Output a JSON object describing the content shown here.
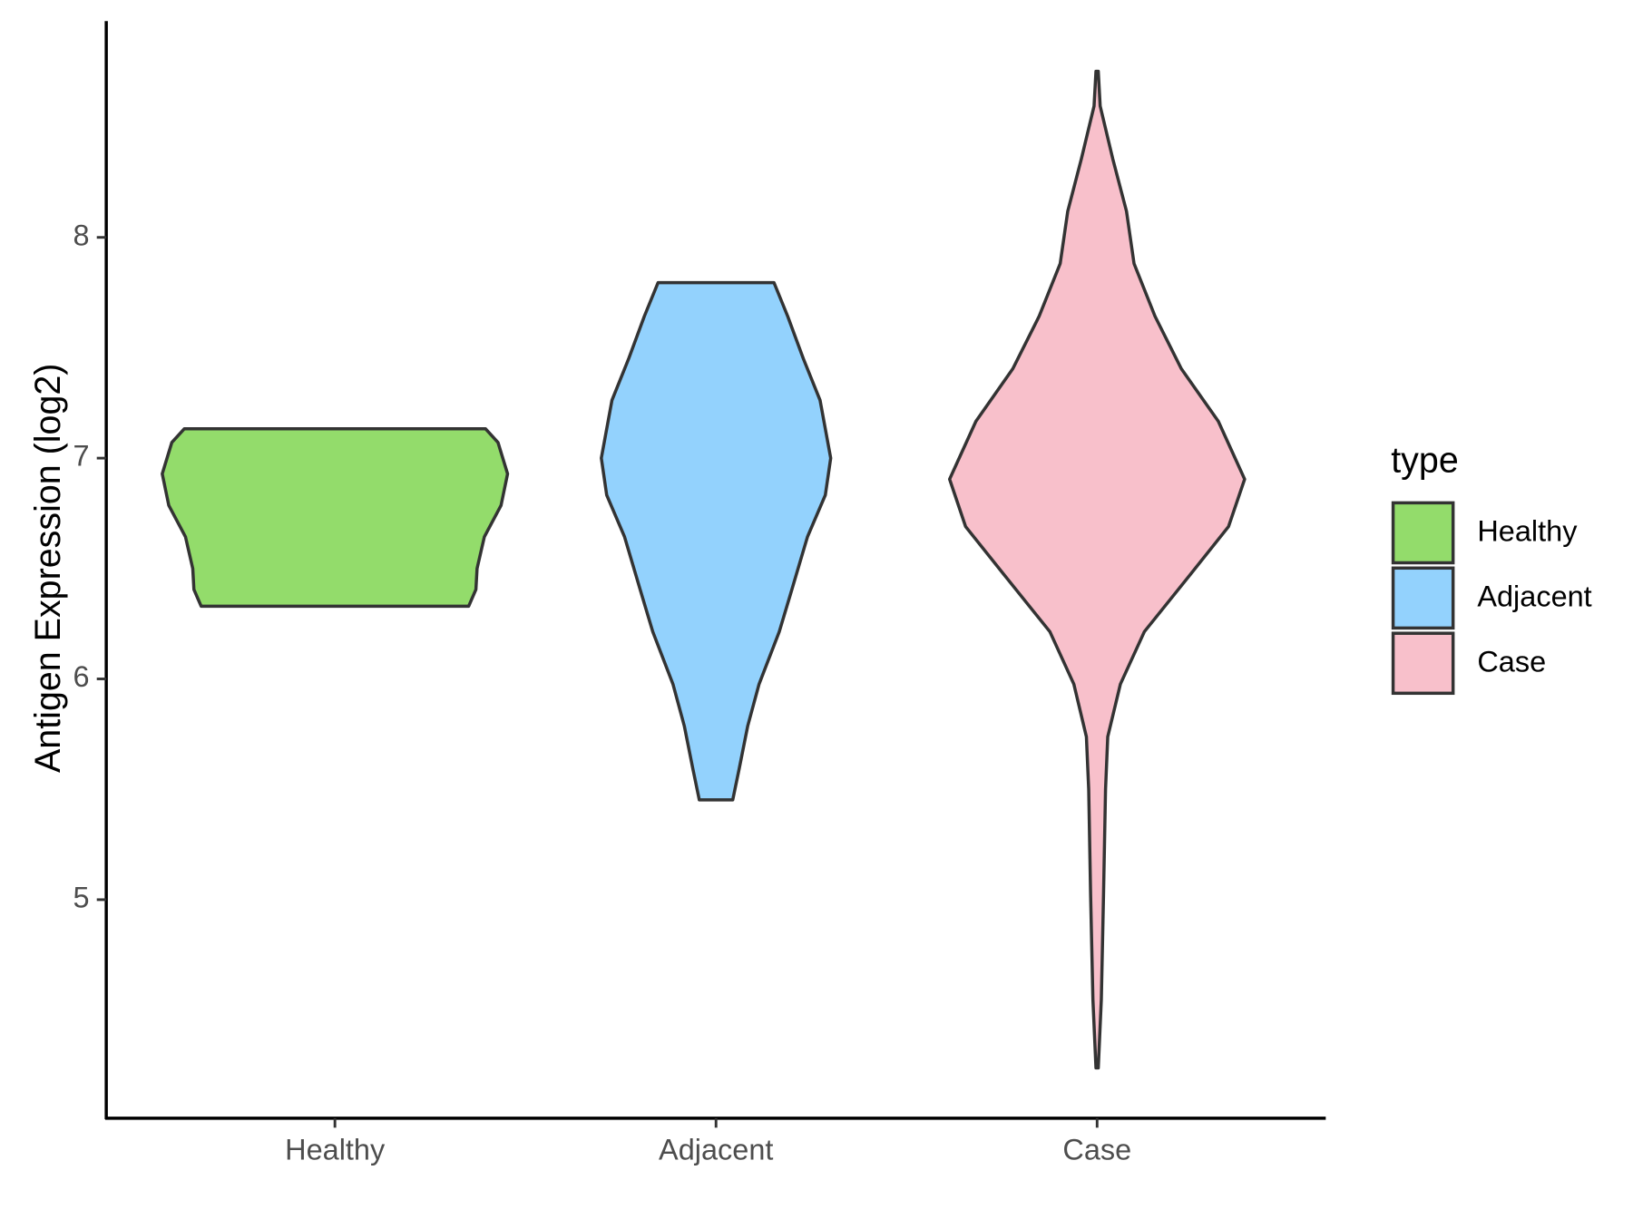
{
  "chart_data": {
    "type": "violin",
    "y_label": "Antigen Expression (log2)",
    "categories": [
      "Healthy",
      "Adjacent",
      "Case"
    ],
    "ylim": [
      4.01,
      8.98
    ],
    "yticks": [
      5,
      6,
      7,
      8
    ],
    "legend_title": "type",
    "legend": "right",
    "series": [
      {
        "name": "Healthy",
        "color": "#93dc6b",
        "y": [
          7.133,
          7.071,
          6.929,
          6.786,
          6.643,
          6.5,
          6.405,
          6.329
        ],
        "width": [
          0.395,
          0.428,
          0.453,
          0.436,
          0.392,
          0.373,
          0.37,
          0.351
        ]
      },
      {
        "name": "Adjacent",
        "color": "#93d2fd",
        "y": [
          7.795,
          7.643,
          7.452,
          7.262,
          7.0,
          6.833,
          6.643,
          6.405,
          6.214,
          5.976,
          5.786,
          5.595,
          5.452
        ],
        "width": [
          0.152,
          0.188,
          0.229,
          0.273,
          0.301,
          0.287,
          0.24,
          0.199,
          0.166,
          0.113,
          0.083,
          0.061,
          0.044
        ]
      },
      {
        "name": "Case",
        "color": "#f8c0cb",
        "y": [
          8.752,
          8.595,
          8.357,
          8.119,
          7.881,
          7.643,
          7.405,
          7.167,
          6.905,
          6.69,
          6.452,
          6.214,
          5.976,
          5.738,
          5.5,
          5.024,
          4.548,
          4.238
        ],
        "width": [
          0.003,
          0.008,
          0.041,
          0.077,
          0.097,
          0.152,
          0.221,
          0.318,
          0.387,
          0.345,
          0.235,
          0.124,
          0.061,
          0.028,
          0.022,
          0.017,
          0.011,
          0.003
        ]
      }
    ]
  }
}
